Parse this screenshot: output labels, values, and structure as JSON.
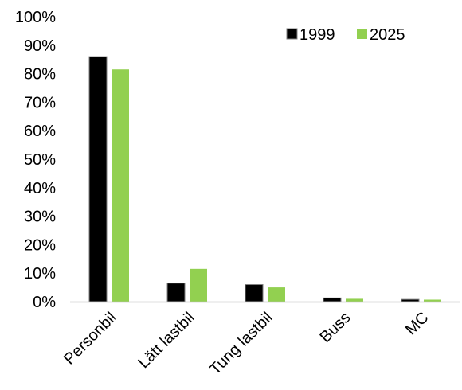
{
  "chart_data": {
    "type": "bar",
    "categories": [
      "Personbil",
      "Lätt lastbil",
      "Tung lastbil",
      "Buss",
      "MC"
    ],
    "series": [
      {
        "name": "1999",
        "values": [
          86,
          6.5,
          6,
          1.3,
          0.8
        ],
        "color": "#000000"
      },
      {
        "name": "2025",
        "values": [
          81.5,
          11.5,
          5,
          1,
          0.7
        ],
        "color": "#92d050"
      }
    ],
    "ylim": [
      0,
      100
    ],
    "yticks": [
      0,
      10,
      20,
      30,
      40,
      50,
      60,
      70,
      80,
      90,
      100
    ],
    "ytick_suffix": "%",
    "grid": false,
    "legend_position": "top-right"
  }
}
